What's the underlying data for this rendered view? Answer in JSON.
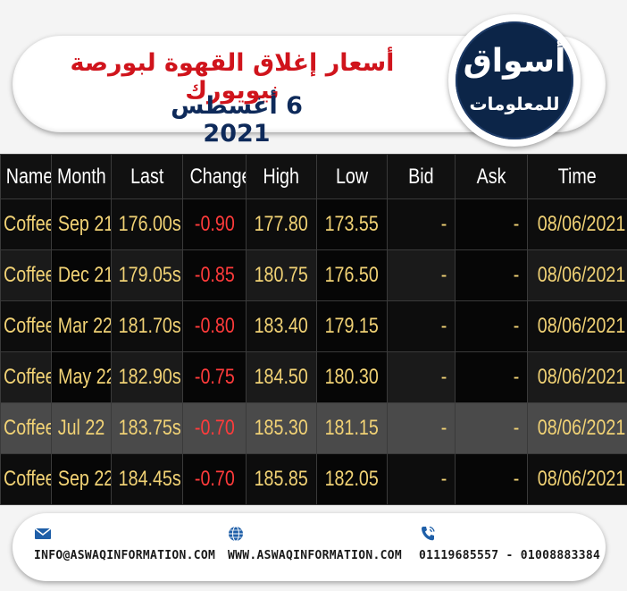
{
  "header": {
    "title": "أسعار إغلاق القهوة لبورصة نيويورك",
    "subtitle": "6 أغسطس 2021",
    "logo_main": "أسواق",
    "logo_sub": "للمعلومات"
  },
  "table": {
    "columns": [
      "Name",
      "Month",
      "Last",
      "Change",
      "High",
      "Low",
      "Bid",
      "Ask",
      "Time"
    ],
    "rows": [
      {
        "name": "Coffee",
        "month": "Sep 21",
        "last": "176.00s",
        "change": "-0.90",
        "high": "177.80",
        "low": "173.55",
        "bid": "-",
        "ask": "-",
        "time": "08/06/2021"
      },
      {
        "name": "Coffee",
        "month": "Dec 21",
        "last": "179.05s",
        "change": "-0.85",
        "high": "180.75",
        "low": "176.50",
        "bid": "-",
        "ask": "-",
        "time": "08/06/2021"
      },
      {
        "name": "Coffee",
        "month": "Mar 22",
        "last": "181.70s",
        "change": "-0.80",
        "high": "183.40",
        "low": "179.15",
        "bid": "-",
        "ask": "-",
        "time": "08/06/2021"
      },
      {
        "name": "Coffee",
        "month": "May 22",
        "last": "182.90s",
        "change": "-0.75",
        "high": "184.50",
        "low": "180.30",
        "bid": "-",
        "ask": "-",
        "time": "08/06/2021"
      },
      {
        "name": "Coffee",
        "month": "Jul 22",
        "last": "183.75s",
        "change": "-0.70",
        "high": "185.30",
        "low": "181.15",
        "bid": "-",
        "ask": "-",
        "time": "08/06/2021"
      },
      {
        "name": "Coffee",
        "month": "Sep 22",
        "last": "184.45s",
        "change": "-0.70",
        "high": "185.85",
        "low": "182.05",
        "bid": "-",
        "ask": "-",
        "time": "08/06/2021"
      }
    ]
  },
  "footer": {
    "email": "INFO@ASWAQINFORMATION.COM",
    "website": "WWW.ASWAQINFORMATION.COM",
    "phones": "01119685557 - 01008883384",
    "email_icon": "envelope-icon",
    "web_icon": "globe-icon",
    "phone_icon": "phone-icon"
  },
  "colors": {
    "title": "#d0141c",
    "subtitle": "#0e2a5a",
    "logo_bg": "#0c2548",
    "value_text": "#f1d275",
    "change_text": "#ff3b3b",
    "icon": "#1f5fa8"
  }
}
